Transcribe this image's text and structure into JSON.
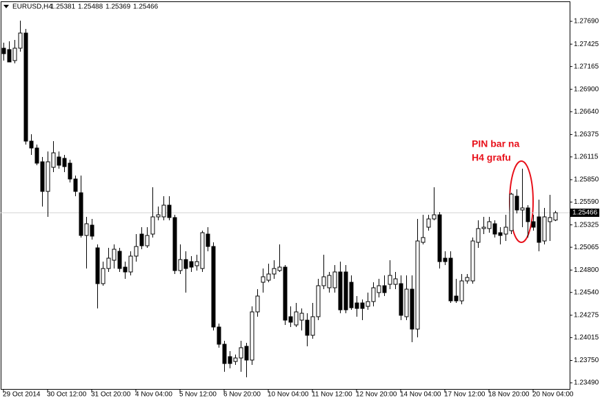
{
  "chart_data": {
    "type": "candlestick",
    "symbol": "EURUSD,H4",
    "annotation": [
      "PIN bar na",
      "H4 grafu"
    ],
    "bull_color": "#ffffff",
    "bear_color": "#000000",
    "annotation_color": "#e8101a",
    "categories": [
      "29 Oct 2014",
      null,
      null,
      null,
      null,
      null,
      null,
      null,
      "30 Oct 12:00",
      null,
      null,
      null,
      null,
      null,
      null,
      null,
      "31 Oct 20:00",
      null,
      null,
      null,
      null,
      null,
      null,
      null,
      "4 Nov 04:00",
      null,
      null,
      null,
      null,
      null,
      null,
      null,
      "5 Nov 12:00",
      null,
      null,
      null,
      null,
      null,
      null,
      null,
      "6 Nov 20:00",
      null,
      null,
      null,
      null,
      null,
      null,
      null,
      "10 Nov 04:00",
      null,
      null,
      null,
      null,
      null,
      null,
      null,
      "11 Nov 12:00",
      null,
      null,
      null,
      null,
      null,
      null,
      null,
      "12 Nov 20:00",
      null,
      null,
      null,
      null,
      null,
      null,
      null,
      "14 Nov 04:00",
      null,
      null,
      null,
      null,
      null,
      null,
      null,
      "17 Nov 12:00",
      null,
      null,
      null,
      null,
      null,
      null,
      null,
      "18 Nov 20:00",
      null,
      null,
      null,
      null,
      null,
      null,
      null,
      "20 Nov 04:00",
      null,
      null,
      null,
      null
    ],
    "open": [
      1.27378,
      1.27362,
      1.27234,
      1.27378,
      1.27554,
      1.26298,
      1.26218,
      1.26058,
      1.25714,
      1.25994,
      1.26114,
      1.26098,
      1.26042,
      1.25858,
      1.25698,
      1.25202,
      1.25322,
      1.25058,
      1.24642,
      1.24818,
      1.24914,
      1.25018,
      1.24834,
      1.24778,
      1.24962,
      1.25218,
      1.25082,
      1.25218,
      1.25418,
      1.25418,
      1.25554,
      1.2541,
      1.24794,
      1.24922,
      1.24898,
      1.2485,
      1.24818,
      1.25218,
      1.25074,
      1.24138,
      1.23938,
      1.23794,
      1.23738,
      1.23778,
      1.23914,
      1.23754,
      1.24314,
      1.24658,
      1.24682,
      1.24754,
      1.24794,
      1.24834,
      1.24258,
      1.24162,
      1.24218,
      1.24218,
      1.24042,
      1.24258,
      1.24618,
      1.24594,
      1.24594,
      1.24778,
      1.24778,
      1.24658,
      1.24418,
      1.24418,
      1.24378,
      1.24434,
      1.24538,
      1.24618,
      1.24634,
      1.24634,
      1.24642,
      1.24258,
      1.24578,
      1.24114,
      1.25122,
      1.25298,
      1.25394,
      1.25442,
      1.24938,
      1.24938,
      1.24498,
      1.24442,
      1.24674,
      1.24674,
      1.25122,
      1.25282,
      1.25282,
      1.25338,
      1.25234,
      1.25218,
      1.25258,
      1.25658,
      1.25498,
      1.25522,
      1.25362,
      1.25418,
      1.25138,
      1.25362,
      1.25381
    ],
    "high": [
      1.27442,
      1.27458,
      1.27474,
      1.27698,
      1.27602,
      1.26378,
      1.26258,
      1.26114,
      1.26178,
      1.26298,
      1.26178,
      1.26138,
      1.26082,
      1.25898,
      1.25898,
      1.25418,
      1.25394,
      1.25098,
      1.24898,
      1.25058,
      1.25098,
      1.25058,
      1.24898,
      1.25018,
      1.25218,
      1.25298,
      1.25298,
      1.25762,
      1.25538,
      1.25658,
      1.25658,
      1.25442,
      1.25098,
      1.25018,
      1.24962,
      1.24978,
      1.25258,
      1.25298,
      1.25122,
      1.24178,
      1.23978,
      1.23858,
      1.23818,
      1.23978,
      1.23954,
      1.24378,
      1.24578,
      1.24818,
      1.24874,
      1.24914,
      1.25098,
      1.24858,
      1.24378,
      1.24418,
      1.24354,
      1.24298,
      1.24418,
      1.24698,
      1.24978,
      1.24778,
      1.24858,
      1.24898,
      1.24858,
      1.24738,
      1.24498,
      1.24458,
      1.24538,
      1.24658,
      1.24698,
      1.24738,
      1.24914,
      1.24778,
      1.24738,
      1.24738,
      1.24738,
      1.25394,
      1.25442,
      1.25442,
      1.25762,
      1.25474,
      1.25018,
      1.25018,
      1.24698,
      1.24754,
      1.24754,
      1.25178,
      1.25378,
      1.25418,
      1.25418,
      1.25378,
      1.25298,
      1.25442,
      1.25698,
      1.25738,
      1.25978,
      1.25554,
      1.25442,
      1.25618,
      1.25522,
      1.25674,
      1.25488
    ],
    "low": [
      1.27234,
      1.27218,
      1.27202,
      1.27338,
      1.26258,
      1.26138,
      1.26018,
      1.25538,
      1.25418,
      1.25938,
      1.25978,
      1.25938,
      1.25818,
      1.25658,
      1.25178,
      1.24818,
      1.25154,
      1.24354,
      1.24618,
      1.24778,
      1.24818,
      1.24778,
      1.24698,
      1.24738,
      1.24898,
      1.25042,
      1.25058,
      1.25178,
      1.25378,
      1.25378,
      1.25378,
      1.24754,
      1.24754,
      1.24538,
      1.24778,
      1.24794,
      1.24778,
      1.25018,
      1.24098,
      1.23898,
      1.23618,
      1.23658,
      1.23698,
      1.23618,
      1.23554,
      1.23698,
      1.24258,
      1.24538,
      1.24658,
      1.24698,
      1.24778,
      1.24162,
      1.24138,
      1.24138,
      1.24098,
      1.23914,
      1.24002,
      1.24218,
      1.24578,
      1.24538,
      1.24538,
      1.24298,
      1.24298,
      1.24338,
      1.24258,
      1.24218,
      1.24338,
      1.24378,
      1.24482,
      1.24498,
      1.24578,
      1.24578,
      1.24218,
      1.24218,
      1.23962,
      1.24018,
      1.25098,
      1.25258,
      1.25378,
      1.24818,
      1.24858,
      1.24418,
      1.24418,
      1.24402,
      1.24642,
      1.24642,
      1.25058,
      1.25218,
      1.25234,
      1.25178,
      1.25098,
      1.25138,
      1.25218,
      1.25458,
      1.25298,
      1.25178,
      1.25258,
      1.25018,
      1.25098,
      1.25138,
      1.25369
    ],
    "close": [
      1.27314,
      1.27218,
      1.27378,
      1.27554,
      1.26298,
      1.26218,
      1.26042,
      1.25714,
      1.26058,
      1.26162,
      1.26018,
      1.26002,
      1.25858,
      1.25714,
      1.25202,
      1.25338,
      1.25194,
      1.24642,
      1.24818,
      1.24938,
      1.25042,
      1.24818,
      1.24778,
      1.24962,
      1.25074,
      1.25082,
      1.25202,
      1.25418,
      1.25442,
      1.25554,
      1.2541,
      1.24794,
      1.24922,
      1.24818,
      1.24834,
      1.24898,
      1.25234,
      1.25074,
      1.24138,
      1.23938,
      1.23714,
      1.23714,
      1.23778,
      1.23898,
      1.23754,
      1.24314,
      1.24498,
      1.24722,
      1.24754,
      1.24818,
      1.24834,
      1.24218,
      1.24194,
      1.24314,
      1.24298,
      1.24042,
      1.24258,
      1.24618,
      1.24722,
      1.24738,
      1.24778,
      1.24338,
      1.24338,
      1.24362,
      1.24354,
      1.24354,
      1.24434,
      1.24594,
      1.24618,
      1.24538,
      1.24738,
      1.24698,
      1.24274,
      1.24578,
      1.24114,
      1.25138,
      1.25178,
      1.25394,
      1.25442,
      1.24898,
      1.24898,
      1.24442,
      1.24442,
      1.24674,
      1.24714,
      1.25138,
      1.25282,
      1.25298,
      1.25362,
      1.25218,
      1.25202,
      1.25298,
      1.25682,
      1.25498,
      1.25522,
      1.25362,
      1.25298,
      1.25122,
      1.25418,
      1.2541,
      1.25466
    ],
    "ylim": [
      1.2341,
      1.27914
    ],
    "yticks": [
      {
        "value": 1.2769,
        "label": "1.27690"
      },
      1.27425,
      1.27165,
      {
        "value": 1.269,
        "label": "1.26900"
      },
      {
        "value": 1.2664,
        "label": "1.26640"
      },
      1.26375,
      1.26115,
      {
        "value": 1.2585,
        "label": "1.25850"
      },
      {
        "value": 1.2559,
        "label": "1.25590"
      },
      1.25325,
      1.25065,
      {
        "value": 1.248,
        "label": "1.24800"
      },
      {
        "value": 1.2454,
        "label": "1.24540"
      },
      1.24275,
      1.24015,
      {
        "value": 1.2375,
        "label": "1.23750"
      },
      {
        "value": 1.2349,
        "label": "1.23490"
      }
    ]
  }
}
